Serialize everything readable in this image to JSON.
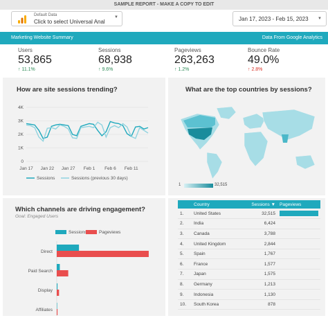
{
  "topbar": {
    "text": "SAMPLE REPORT - MAKE A COPY TO EDIT"
  },
  "data_source": {
    "label": "Default Data",
    "value": "Click to select Universal Anal"
  },
  "date_range": {
    "value": "Jan 17, 2023 - Feb 15, 2023"
  },
  "banner": {
    "left": "Marketing Website Summary",
    "right": "Data From Google Analytics"
  },
  "kpis": [
    {
      "label": "Users",
      "value": "53,865",
      "delta": "11.1%",
      "direction": "up"
    },
    {
      "label": "Sessions",
      "value": "68,938",
      "delta": "9.6%",
      "direction": "up"
    },
    {
      "label": "Pageviews",
      "value": "263,263",
      "delta": "1.2%",
      "direction": "up"
    },
    {
      "label": "Bounce Rate",
      "value": "49.0%",
      "delta": "2.8%",
      "direction": "up"
    }
  ],
  "colors": {
    "accent": "#1fa9bd",
    "sessions_prev": "#8fd3df",
    "pageviews": "#e94e4e",
    "up": "#2e8b57"
  },
  "trend_panel": {
    "title": "How are site sessions trending?"
  },
  "map_panel": {
    "title": "What are the top countries by sessions?",
    "legend_min": "1",
    "legend_max": "32,515"
  },
  "channels_panel": {
    "title": "Which channels are driving engagement?",
    "subtitle": "Goal: Engaged Users"
  },
  "chart_data": [
    {
      "type": "line",
      "yticks": [
        "0",
        "1K",
        "2K",
        "3K",
        "4K"
      ],
      "xticks": [
        "Jan 17",
        "Jan 22",
        "Jan 27",
        "Feb 1",
        "Feb 6",
        "Feb 11"
      ],
      "ylim": [
        0,
        4000
      ],
      "x": [
        "Jan 17",
        "Jan 18",
        "Jan 19",
        "Jan 20",
        "Jan 21",
        "Jan 22",
        "Jan 23",
        "Jan 24",
        "Jan 25",
        "Jan 26",
        "Jan 27",
        "Jan 28",
        "Jan 29",
        "Jan 30",
        "Jan 31",
        "Feb 1",
        "Feb 2",
        "Feb 3",
        "Feb 4",
        "Feb 5",
        "Feb 6",
        "Feb 7",
        "Feb 8",
        "Feb 9",
        "Feb 10",
        "Feb 11",
        "Feb 12",
        "Feb 13",
        "Feb 14",
        "Feb 15"
      ],
      "series": [
        {
          "name": "Sessions",
          "values": [
            2800,
            2750,
            2700,
            2300,
            1700,
            1800,
            2600,
            2700,
            2750,
            2700,
            2650,
            2000,
            1900,
            2600,
            2700,
            2800,
            2750,
            2300,
            1900,
            2200,
            2950,
            2850,
            2800,
            2650,
            2050,
            1850,
            2550,
            2600,
            2400,
            2500
          ]
        },
        {
          "name": "Sessions (previous 30 days)",
          "values": [
            2700,
            2650,
            2500,
            1800,
            1500,
            2450,
            2500,
            2400,
            2700,
            2600,
            2400,
            1750,
            1700,
            2500,
            2550,
            2600,
            2500,
            2900,
            2700,
            1800,
            2500,
            2650,
            2500,
            2800,
            2550,
            1850,
            1700,
            2500,
            2300,
            2100
          ]
        }
      ]
    },
    {
      "type": "bar",
      "orientation": "horizontal",
      "categories": [
        "Direct",
        "Paid Search",
        "Display",
        "Affiliates"
      ],
      "series": [
        {
          "name": "Sessions",
          "values": [
            29000,
            4000,
            1000,
            500
          ]
        },
        {
          "name": "Pageviews",
          "values": [
            120000,
            15000,
            3000,
            1000
          ]
        }
      ],
      "xlim": [
        0,
        130000
      ]
    }
  ],
  "country_table": {
    "headers": [
      "Country",
      "Sessions",
      "Pageviews"
    ],
    "sort_indicator": "▼",
    "rows": [
      {
        "rank": "1.",
        "country": "United States",
        "sessions": "32,515",
        "pv": 1.0
      },
      {
        "rank": "2.",
        "country": "India",
        "sessions": "6,424",
        "pv": 0.0
      },
      {
        "rank": "3.",
        "country": "Canada",
        "sessions": "3,788",
        "pv": 0.0
      },
      {
        "rank": "4.",
        "country": "United Kingdom",
        "sessions": "2,844",
        "pv": 0.0
      },
      {
        "rank": "5.",
        "country": "Spain",
        "sessions": "1,767",
        "pv": 0.0
      },
      {
        "rank": "6.",
        "country": "France",
        "sessions": "1,577",
        "pv": 0.0
      },
      {
        "rank": "7.",
        "country": "Japan",
        "sessions": "1,575",
        "pv": 0.0
      },
      {
        "rank": "8.",
        "country": "Germany",
        "sessions": "1,213",
        "pv": 0.0
      },
      {
        "rank": "9.",
        "country": "Indonesia",
        "sessions": "1,130",
        "pv": 0.0
      },
      {
        "rank": "10.",
        "country": "South Korea",
        "sessions": "878",
        "pv": 0.0
      }
    ]
  }
}
